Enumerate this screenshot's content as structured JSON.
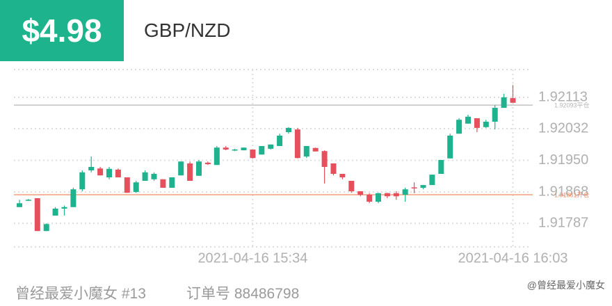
{
  "header": {
    "profit": "$4.98",
    "pair": "GBP/NZD"
  },
  "footer": {
    "user": "曾经最爱小魔女 #13",
    "order": "订单号 88486798",
    "watermark": "@曾经最爱小魔女"
  },
  "chart_data": {
    "type": "candlestick",
    "categories": [
      null,
      null,
      null,
      null,
      null,
      null,
      null,
      null,
      null,
      null,
      null,
      null,
      null,
      null,
      null,
      null,
      null,
      null,
      null,
      null,
      null,
      null,
      null,
      null,
      null,
      null,
      "2021-04-16 15:34",
      null,
      null,
      null,
      null,
      null,
      null,
      null,
      null,
      null,
      null,
      null,
      null,
      null,
      null,
      null,
      null,
      null,
      null,
      null,
      null,
      null,
      null,
      null,
      null,
      null,
      null,
      null,
      null,
      "2021-04-16 16:03"
    ],
    "open": [
      1.91829,
      1.91847,
      1.91852,
      1.91767,
      1.91807,
      1.91825,
      1.91829,
      1.91875,
      1.91924,
      1.91929,
      1.91906,
      1.91926,
      1.91906,
      1.91868,
      1.91897,
      1.91901,
      1.91901,
      1.91879,
      1.91911,
      1.91942,
      1.9191,
      1.91944,
      1.91938,
      1.91983,
      1.91976,
      1.91976,
      1.91978,
      1.91965,
      1.9198,
      1.91987,
      1.92023,
      1.9203,
      1.9196,
      1.91982,
      1.91974,
      1.91942,
      1.91915,
      1.91897,
      1.9187,
      1.91861,
      1.91843,
      1.91865,
      1.91865,
      1.91861,
      1.9188,
      1.91879,
      1.91886,
      1.91915,
      1.91955,
      1.92019,
      1.92045,
      1.92059,
      1.92036,
      1.9205,
      1.92086,
      1.92111
    ],
    "high": [
      1.91848,
      1.9185,
      1.91852,
      1.91787,
      1.91829,
      1.91833,
      1.91879,
      1.91924,
      1.9196,
      1.91933,
      1.91933,
      1.91929,
      1.91906,
      1.91897,
      1.91924,
      1.91919,
      1.91901,
      1.91906,
      1.91947,
      1.91947,
      1.91951,
      1.91947,
      1.91987,
      1.91987,
      1.9198,
      1.91983,
      1.91978,
      1.91987,
      1.91991,
      1.92019,
      1.92036,
      1.92034,
      1.91987,
      1.91983,
      1.91976,
      1.91942,
      1.91915,
      1.91897,
      1.9187,
      1.91865,
      1.91866,
      1.91866,
      1.9187,
      1.91879,
      1.91893,
      1.91886,
      1.91913,
      1.91951,
      1.92019,
      1.92059,
      1.92068,
      1.92059,
      1.92055,
      1.92093,
      1.92122,
      1.92145
    ],
    "low": [
      1.91829,
      1.91845,
      1.91767,
      1.91767,
      1.91807,
      1.91807,
      1.91829,
      1.9187,
      1.91919,
      1.91911,
      1.91901,
      1.91906,
      1.91866,
      1.91866,
      1.91897,
      1.91897,
      1.91879,
      1.91879,
      1.91911,
      1.91897,
      1.9191,
      1.91938,
      1.91938,
      1.91976,
      1.91974,
      1.91976,
      1.91955,
      1.91965,
      1.91978,
      1.91987,
      1.92019,
      1.91955,
      1.91956,
      1.91973,
      1.9189,
      1.91911,
      1.91901,
      1.91866,
      1.91857,
      1.91839,
      1.91839,
      1.91852,
      1.91848,
      1.91843,
      1.91865,
      1.91875,
      1.91886,
      1.91915,
      1.91955,
      1.92019,
      1.92045,
      1.92023,
      1.92034,
      1.9203,
      1.92086,
      1.92099
    ],
    "close": [
      1.91839,
      1.91848,
      1.91767,
      1.91785,
      1.91825,
      1.91829,
      1.91875,
      1.91919,
      1.91933,
      1.91911,
      1.91928,
      1.91906,
      1.91866,
      1.91893,
      1.91919,
      1.91915,
      1.91879,
      1.91906,
      1.91947,
      1.91897,
      1.91947,
      1.9194,
      1.91983,
      1.91978,
      1.91978,
      1.91983,
      1.91956,
      1.91987,
      1.91991,
      1.92014,
      1.92034,
      1.91956,
      1.91987,
      1.91973,
      1.91933,
      1.91915,
      1.91906,
      1.9187,
      1.91861,
      1.91843,
      1.91865,
      1.91857,
      1.91857,
      1.91875,
      1.91879,
      1.91886,
      1.91913,
      1.91951,
      1.92014,
      1.92055,
      1.92063,
      1.92034,
      1.9205,
      1.92086,
      1.92113,
      1.92099
    ],
    "up_color": "#1fb28e",
    "down_color": "#e5505c",
    "ylim": [
      1.91726,
      1.92185
    ],
    "yticks": [
      1.92113,
      1.92032,
      {
        "value": 1.9195,
        "label": "1.91950"
      },
      1.91868,
      1.91787
    ],
    "grid": true,
    "reference_lines": [
      {
        "value": 1.92093,
        "label": "1.92093平仓",
        "color": "#b5b5b5"
      },
      {
        "value": 1.91861,
        "label": "1.91861开仓",
        "color": "#f28a62"
      }
    ]
  }
}
